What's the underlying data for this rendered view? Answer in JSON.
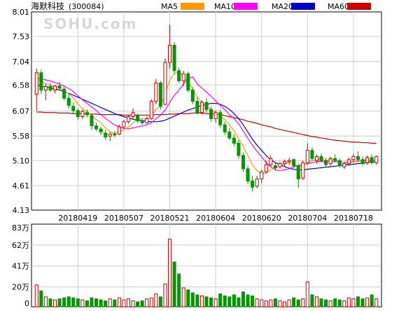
{
  "title": "海默科技",
  "code": "(300084)",
  "legend": [
    {
      "label": "MA5",
      "color": "#ff9900"
    },
    {
      "label": "MA10",
      "color": "#ff00ff"
    },
    {
      "label": "MA20",
      "color": "#0000cc"
    },
    {
      "label": "MA60",
      "color": "#cc0000"
    }
  ],
  "watermark": "SOHU.com",
  "colors": {
    "up": "#cc0000",
    "down": "#009900",
    "grid": "#cccccc",
    "axis": "#000000"
  },
  "chart_data": [
    {
      "type": "candlestick",
      "name": "price",
      "ylim": [
        4.13,
        8.01
      ],
      "y_ticks": [
        "8.01",
        "7.53",
        "7.04",
        "6.58",
        "6.07",
        "5.58",
        "5.10",
        "4.61",
        "4.13"
      ],
      "y_tick_values": [
        8.01,
        7.53,
        7.04,
        6.58,
        6.07,
        5.58,
        5.1,
        4.61,
        4.13
      ],
      "x_labels": [
        {
          "label": "20180419",
          "index": 9
        },
        {
          "label": "20180507",
          "index": 19
        },
        {
          "label": "20180521",
          "index": 29
        },
        {
          "label": "20180604",
          "index": 39
        },
        {
          "label": "20180620",
          "index": 49
        },
        {
          "label": "20180704",
          "index": 59
        },
        {
          "label": "20180718",
          "index": 69
        }
      ],
      "ohlc": [
        [
          6.4,
          6.9,
          6.08,
          6.82
        ],
        [
          6.82,
          6.88,
          6.4,
          6.48
        ],
        [
          6.48,
          6.6,
          6.28,
          6.55
        ],
        [
          6.55,
          6.62,
          6.44,
          6.48
        ],
        [
          6.48,
          6.58,
          6.42,
          6.56
        ],
        [
          6.56,
          6.64,
          6.48,
          6.52
        ],
        [
          6.5,
          6.55,
          6.28,
          6.32
        ],
        [
          6.32,
          6.4,
          6.12,
          6.18
        ],
        [
          6.16,
          6.24,
          6.02,
          6.08
        ],
        [
          6.08,
          6.12,
          5.9,
          5.96
        ],
        [
          5.96,
          6.1,
          5.92,
          6.06
        ],
        [
          6.04,
          6.1,
          5.95,
          6.0
        ],
        [
          5.98,
          6.02,
          5.7,
          5.78
        ],
        [
          5.78,
          5.84,
          5.68,
          5.72
        ],
        [
          5.72,
          5.76,
          5.6,
          5.66
        ],
        [
          5.64,
          5.7,
          5.5,
          5.56
        ],
        [
          5.58,
          5.66,
          5.48,
          5.62
        ],
        [
          5.62,
          5.68,
          5.56,
          5.6
        ],
        [
          5.62,
          5.8,
          5.6,
          5.76
        ],
        [
          5.76,
          5.9,
          5.72,
          5.86
        ],
        [
          5.86,
          6.0,
          5.82,
          5.96
        ],
        [
          5.96,
          6.12,
          5.9,
          6.04
        ],
        [
          5.98,
          6.02,
          5.84,
          5.88
        ],
        [
          5.86,
          5.92,
          5.8,
          5.84
        ],
        [
          5.84,
          5.96,
          5.82,
          5.92
        ],
        [
          5.92,
          6.3,
          5.9,
          6.26
        ],
        [
          6.26,
          6.7,
          6.2,
          6.62
        ],
        [
          6.62,
          6.66,
          6.1,
          6.16
        ],
        [
          6.2,
          7.1,
          6.18,
          7.02
        ],
        [
          7.02,
          7.76,
          6.9,
          7.36
        ],
        [
          7.36,
          7.42,
          6.8,
          6.86
        ],
        [
          6.86,
          6.92,
          6.62,
          6.66
        ],
        [
          6.66,
          6.86,
          6.56,
          6.8
        ],
        [
          6.8,
          6.84,
          6.44,
          6.48
        ],
        [
          6.48,
          6.54,
          6.2,
          6.26
        ],
        [
          6.26,
          6.34,
          6.0,
          6.04
        ],
        [
          6.04,
          6.28,
          6.0,
          6.24
        ],
        [
          6.24,
          6.32,
          6.04,
          6.1
        ],
        [
          6.1,
          6.16,
          5.86,
          5.92
        ],
        [
          5.92,
          6.08,
          5.84,
          6.04
        ],
        [
          6.04,
          6.1,
          5.74,
          5.8
        ],
        [
          5.8,
          5.86,
          5.6,
          5.66
        ],
        [
          5.66,
          5.74,
          5.5,
          5.54
        ],
        [
          5.54,
          5.62,
          5.38,
          5.44
        ],
        [
          5.44,
          5.5,
          5.14,
          5.2
        ],
        [
          5.2,
          5.26,
          4.88,
          4.94
        ],
        [
          4.94,
          5.0,
          4.64,
          4.7
        ],
        [
          4.7,
          4.8,
          4.5,
          4.58
        ],
        [
          4.6,
          4.8,
          4.56,
          4.74
        ],
        [
          4.74,
          4.92,
          4.66,
          4.88
        ],
        [
          4.88,
          5.1,
          4.84,
          5.02
        ],
        [
          5.02,
          5.2,
          4.98,
          5.14
        ],
        [
          5.0,
          5.06,
          4.9,
          4.96
        ],
        [
          4.98,
          5.08,
          4.94,
          5.04
        ],
        [
          5.04,
          5.12,
          4.98,
          5.08
        ],
        [
          5.08,
          5.16,
          5.02,
          5.1
        ],
        [
          5.12,
          5.14,
          4.96,
          5.0
        ],
        [
          5.0,
          5.04,
          4.56,
          4.74
        ],
        [
          4.76,
          5.1,
          4.72,
          5.06
        ],
        [
          5.06,
          5.44,
          5.02,
          5.3
        ],
        [
          5.3,
          5.36,
          5.1,
          5.14
        ],
        [
          5.1,
          5.22,
          5.04,
          5.18
        ],
        [
          5.18,
          5.24,
          5.06,
          5.1
        ],
        [
          5.1,
          5.16,
          4.98,
          5.02
        ],
        [
          5.04,
          5.18,
          5.0,
          5.14
        ],
        [
          5.14,
          5.22,
          5.06,
          5.1
        ],
        [
          5.1,
          5.14,
          4.96,
          5.0
        ],
        [
          4.98,
          5.08,
          4.94,
          5.04
        ],
        [
          5.04,
          5.16,
          5.0,
          5.12
        ],
        [
          5.12,
          5.24,
          5.06,
          5.18
        ],
        [
          5.18,
          5.28,
          5.08,
          5.12
        ],
        [
          5.12,
          5.18,
          5.0,
          5.04
        ],
        [
          5.06,
          5.2,
          5.02,
          5.16
        ],
        [
          5.16,
          5.22,
          5.02,
          5.06
        ],
        [
          5.06,
          5.2,
          5.02,
          5.18
        ]
      ],
      "ma5": [
        6.7,
        6.66,
        6.61,
        6.57,
        6.53,
        6.52,
        6.47,
        6.41,
        6.33,
        6.21,
        6.12,
        6.06,
        5.98,
        5.9,
        5.84,
        5.74,
        5.67,
        5.63,
        5.66,
        5.7,
        5.76,
        5.84,
        5.9,
        5.92,
        5.91,
        5.99,
        6.1,
        6.16,
        6.4,
        6.68,
        6.8,
        6.84,
        6.74,
        6.63,
        6.5,
        6.34,
        6.24,
        6.16,
        6.1,
        6.04,
        5.98,
        5.9,
        5.8,
        5.68,
        5.53,
        5.38,
        5.2,
        5.02,
        4.9,
        4.84,
        4.86,
        4.92,
        4.95,
        5.0,
        5.04,
        5.06,
        5.04,
        4.98,
        5.0,
        5.06,
        5.1,
        5.12,
        5.14,
        5.1,
        5.12,
        5.11,
        5.08,
        5.06,
        5.08,
        5.08,
        5.1,
        5.1,
        5.12,
        5.1,
        5.11
      ],
      "ma10": [
        6.72,
        6.7,
        6.68,
        6.66,
        6.63,
        6.6,
        6.56,
        6.51,
        6.45,
        6.37,
        6.29,
        6.22,
        6.15,
        6.08,
        6.0,
        5.93,
        5.86,
        5.8,
        5.76,
        5.73,
        5.72,
        5.74,
        5.76,
        5.78,
        5.8,
        5.84,
        5.92,
        5.99,
        6.09,
        6.24,
        6.38,
        6.48,
        6.6,
        6.7,
        6.74,
        6.6,
        6.52,
        6.44,
        6.36,
        6.27,
        6.18,
        6.1,
        6.0,
        5.92,
        5.82,
        5.68,
        5.54,
        5.4,
        5.28,
        5.18,
        5.06,
        4.98,
        4.92,
        4.9,
        4.92,
        4.94,
        4.98,
        5.0,
        5.02,
        5.04,
        5.06,
        5.08,
        5.09,
        5.08,
        5.07,
        5.08,
        5.07,
        5.06,
        5.06,
        5.08,
        5.09,
        5.1,
        5.1,
        5.1,
        5.11
      ],
      "ma20": [
        6.58,
        6.56,
        6.54,
        6.52,
        6.5,
        6.48,
        6.45,
        6.42,
        6.38,
        6.34,
        6.3,
        6.26,
        6.22,
        6.18,
        6.14,
        6.1,
        6.06,
        6.02,
        5.99,
        5.96,
        5.93,
        5.91,
        5.89,
        5.88,
        5.87,
        5.86,
        5.86,
        5.87,
        5.89,
        5.93,
        5.97,
        6.01,
        6.05,
        6.09,
        6.12,
        6.15,
        6.18,
        6.2,
        6.22,
        6.22,
        6.2,
        6.16,
        6.1,
        6.02,
        5.92,
        5.8,
        5.66,
        5.52,
        5.4,
        5.3,
        5.2,
        5.12,
        5.06,
        5.02,
        4.98,
        4.95,
        4.93,
        4.92,
        4.92,
        4.93,
        4.94,
        4.95,
        4.96,
        4.97,
        4.98,
        4.99,
        5.0,
        5.01,
        5.02,
        5.03,
        5.04,
        5.05,
        5.06,
        5.07,
        5.08
      ],
      "ma60": [
        6.05,
        6.05,
        6.04,
        6.04,
        6.04,
        6.03,
        6.03,
        6.03,
        6.02,
        6.02,
        6.02,
        6.01,
        6.01,
        6.01,
        6.0,
        6.0,
        6.0,
        6.0,
        6.0,
        5.99,
        5.99,
        5.99,
        5.99,
        5.99,
        5.99,
        5.99,
        6.0,
        6.0,
        6.0,
        6.01,
        6.01,
        6.02,
        6.02,
        6.02,
        6.03,
        6.03,
        6.03,
        6.02,
        6.02,
        6.01,
        6.0,
        5.98,
        5.96,
        5.94,
        5.92,
        5.9,
        5.87,
        5.85,
        5.83,
        5.8,
        5.78,
        5.76,
        5.73,
        5.71,
        5.69,
        5.67,
        5.65,
        5.63,
        5.61,
        5.59,
        5.57,
        5.56,
        5.54,
        5.53,
        5.51,
        5.5,
        5.49,
        5.48,
        5.47,
        5.46,
        5.46,
        5.45,
        5.45,
        5.44,
        5.44
      ]
    },
    {
      "type": "bar",
      "name": "volume",
      "ylim": [
        0,
        83
      ],
      "y_ticks": [
        "83万",
        "62万",
        "41万",
        "20万",
        "0"
      ],
      "y_tick_values": [
        83,
        62,
        41,
        20,
        0
      ],
      "values": [
        22,
        16,
        10,
        8,
        7,
        8,
        9,
        10,
        9,
        8,
        7,
        6,
        9,
        8,
        7,
        6,
        8,
        7,
        9,
        7,
        8,
        6,
        5,
        6,
        8,
        9,
        13,
        10,
        23,
        68,
        45,
        33,
        19,
        17,
        14,
        12,
        11,
        10,
        9,
        8,
        13,
        11,
        10,
        12,
        9,
        15,
        12,
        11,
        8,
        7,
        6,
        7,
        8,
        6,
        5,
        7,
        9,
        7,
        8,
        25,
        12,
        10,
        8,
        7,
        6,
        8,
        7,
        6,
        9,
        8,
        10,
        8,
        9,
        12,
        8
      ]
    }
  ]
}
